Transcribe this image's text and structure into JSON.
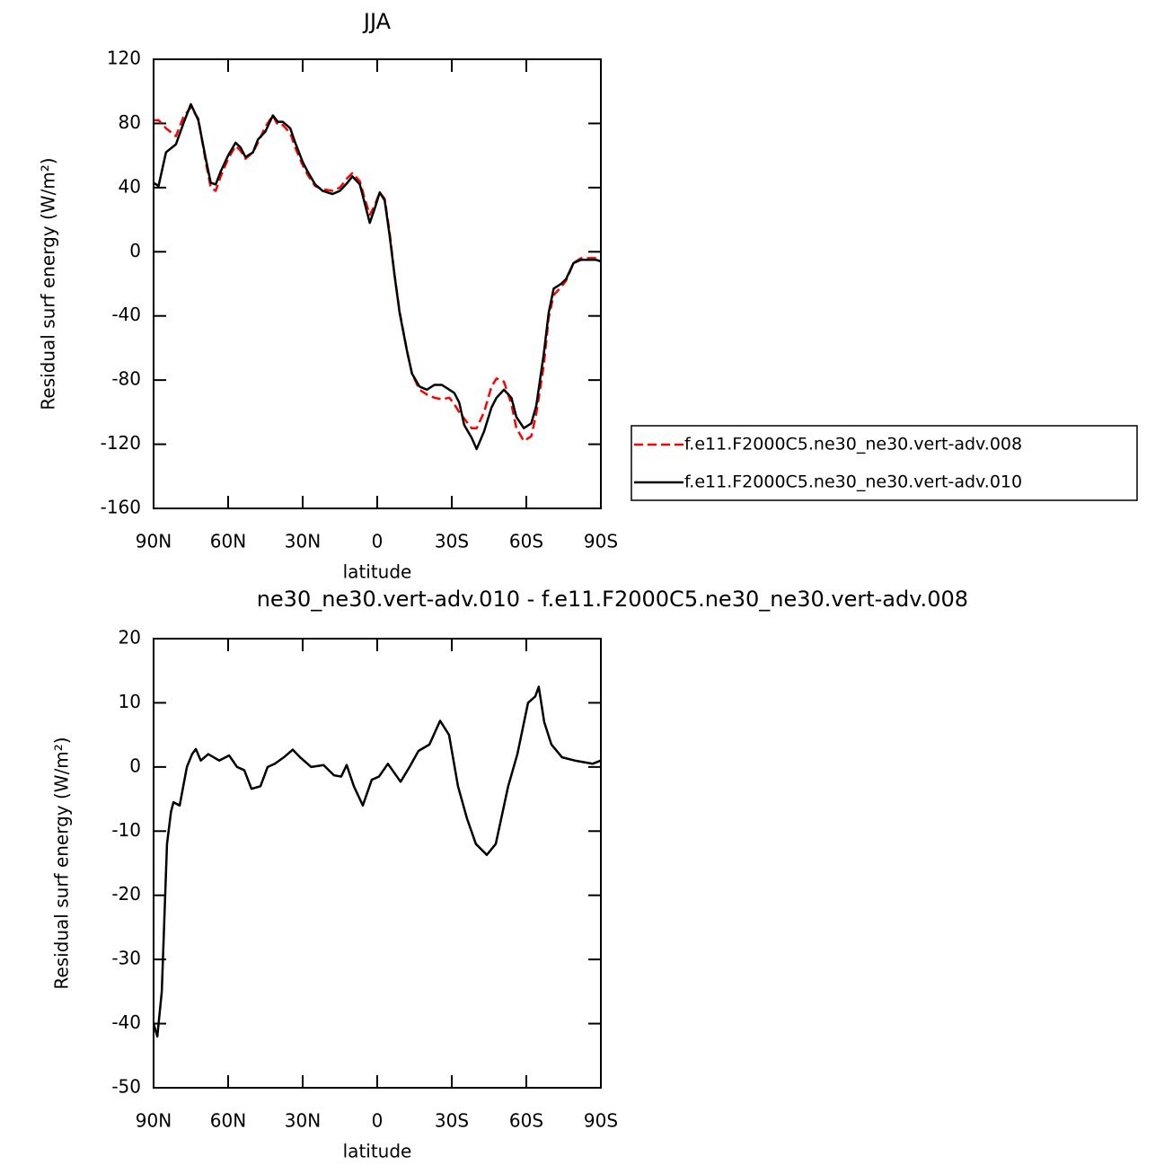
{
  "chart_data": [
    {
      "type": "line",
      "title": "JJA",
      "xlabel": "latitude",
      "ylabel": "Residual surf energy (W/m²)",
      "xlim": [
        90,
        -90
      ],
      "ylim": [
        -160,
        120
      ],
      "xticks": [
        {
          "value": 90,
          "label": "90N"
        },
        {
          "value": 60,
          "label": "60N"
        },
        {
          "value": 30,
          "label": "30N"
        },
        0,
        {
          "value": -30,
          "label": "30S"
        },
        {
          "value": -60,
          "label": "60S"
        },
        {
          "value": -90,
          "label": "90S"
        }
      ],
      "yticks": [
        -160,
        -120,
        -80,
        -40,
        0,
        40,
        80,
        120
      ],
      "x": [
        90,
        88,
        85,
        81,
        78,
        75,
        72,
        69,
        67,
        65,
        63,
        60,
        57,
        55,
        53,
        50,
        48,
        45,
        42,
        40,
        38,
        35,
        33,
        30,
        28,
        25,
        22,
        18,
        15,
        12,
        10,
        7,
        5,
        3,
        1,
        -1,
        -3,
        -5,
        -7,
        -9,
        -12,
        -14,
        -17,
        -20,
        -23,
        -26,
        -29,
        -31,
        -33,
        -35,
        -38,
        -40,
        -43,
        -46,
        -48,
        -51,
        -54,
        -56,
        -59,
        -62,
        -64,
        -67,
        -69,
        -71,
        -74,
        -76,
        -79,
        -82,
        -85,
        -88,
        -90
      ],
      "series": [
        {
          "name": "f.e11.F2000C5.ne30_ne30.vert-adv.008",
          "color": "#ff0000",
          "dash": true,
          "values": [
            82,
            82,
            77,
            72,
            84,
            90,
            83,
            56,
            40,
            38,
            47,
            58,
            66,
            63,
            58,
            62,
            68,
            78,
            85,
            79,
            79,
            74,
            65,
            54,
            48,
            41,
            39,
            38,
            40,
            46,
            49,
            44,
            33,
            23,
            29,
            37,
            33,
            12,
            -15,
            -37,
            -62,
            -76,
            -86,
            -89,
            -91,
            -92,
            -91,
            -95,
            -100,
            -104,
            -110,
            -110,
            -100,
            -84,
            -79,
            -81,
            -95,
            -110,
            -118,
            -115,
            -101,
            -71,
            -41,
            -27,
            -22,
            -18,
            -7,
            -4,
            -4,
            -4,
            -6
          ]
        },
        {
          "name": "f.e11.F2000C5.ne30_ne30.vert-adv.010",
          "color": "#000000",
          "dash": false,
          "values": [
            43,
            41,
            62,
            67,
            80,
            92,
            82,
            58,
            43,
            42,
            50,
            60,
            68,
            65,
            59,
            62,
            70,
            75,
            85,
            81,
            81,
            77,
            68,
            56,
            50,
            42,
            38,
            36,
            38,
            43,
            47,
            42,
            30,
            18,
            27,
            37,
            32,
            10,
            -15,
            -38,
            -62,
            -76,
            -84,
            -86,
            -83,
            -83,
            -86,
            -88,
            -94,
            -108,
            -116,
            -123,
            -112,
            -97,
            -91,
            -86,
            -91,
            -103,
            -110,
            -107,
            -96,
            -64,
            -38,
            -23,
            -20,
            -17,
            -7,
            -5,
            -5,
            -5,
            -6
          ]
        }
      ]
    },
    {
      "type": "line",
      "title": "ne30_ne30.vert-adv.010 - f.e11.F2000C5.ne30_ne30.vert-adv.008",
      "xlabel": "latitude",
      "ylabel": "Residual surf energy (W/m²)",
      "xlim": [
        90,
        -90
      ],
      "ylim": [
        -50,
        20
      ],
      "xticks": [
        {
          "value": 90,
          "label": "90N"
        },
        {
          "value": 60,
          "label": "60N"
        },
        {
          "value": 30,
          "label": "30N"
        },
        0,
        {
          "value": -30,
          "label": "30S"
        },
        {
          "value": -60,
          "label": "60S"
        },
        {
          "value": -90,
          "label": "90S"
        }
      ],
      "yticks": [
        -50,
        -40,
        -30,
        -20,
        -10,
        0,
        10,
        20
      ],
      "x": [
        90,
        88.5,
        86.7,
        84.6,
        83,
        82,
        79.5,
        76.6,
        74.5,
        73,
        71,
        68,
        63.6,
        59.6,
        56.4,
        53.5,
        50.6,
        47,
        44.1,
        41.2,
        37.6,
        34,
        31,
        26.6,
        21.6,
        17.4,
        14.5,
        12.3,
        9.4,
        5.8,
        2.2,
        -0.7,
        -4.3,
        -9.4,
        -13,
        -16.6,
        -21,
        -25.3,
        -28.9,
        -32.5,
        -36.1,
        -39.7,
        -44.1,
        -47.7,
        -52.7,
        -56.4,
        -60.7,
        -63.6,
        -65,
        -67.2,
        -70.1,
        -74.4,
        -79.5,
        -86.7,
        -90
      ],
      "series": [
        {
          "color": "#000000",
          "dash": false,
          "values": [
            -40,
            -42,
            -35,
            -12,
            -7,
            -5.5,
            -6,
            0,
            2,
            2.8,
            1,
            2,
            1,
            1.8,
            0,
            -0.5,
            -3.4,
            -3,
            0,
            0.5,
            1.5,
            2.7,
            1.5,
            0,
            0.3,
            -1.3,
            -1.5,
            0.3,
            -3,
            -6,
            -2,
            -1.5,
            0.5,
            -2.3,
            0,
            2.5,
            3.5,
            7.2,
            5,
            -3,
            -8,
            -12,
            -13.7,
            -12,
            -3,
            2,
            10,
            11,
            12.5,
            7,
            3.5,
            1.5,
            1,
            0.5,
            1
          ]
        }
      ]
    }
  ]
}
